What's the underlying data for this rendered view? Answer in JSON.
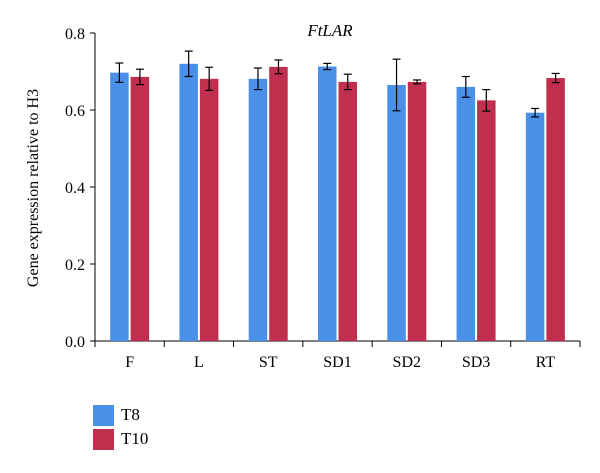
{
  "chart_data": {
    "type": "bar",
    "title": "FtLAR",
    "ylabel": "Gene expression relative to H3",
    "xlabel": "",
    "ylim": [
      0,
      0.8
    ],
    "yticks": [
      "0.0",
      "0.2",
      "0.4",
      "0.6",
      "0.8"
    ],
    "categories": [
      "F",
      "L",
      "ST",
      "SD1",
      "SD2",
      "SD3",
      "RT"
    ],
    "series": [
      {
        "name": "T8",
        "color": "#4a90e8",
        "values": [
          0.697,
          0.72,
          0.681,
          0.713,
          0.665,
          0.66,
          0.593
        ],
        "errors": [
          0.025,
          0.033,
          0.028,
          0.008,
          0.067,
          0.027,
          0.011
        ]
      },
      {
        "name": "T10",
        "color": "#c0304e",
        "values": [
          0.686,
          0.681,
          0.712,
          0.673,
          0.673,
          0.625,
          0.683
        ],
        "errors": [
          0.02,
          0.03,
          0.018,
          0.02,
          0.005,
          0.028,
          0.012
        ]
      }
    ],
    "legend_position": "bottom-left",
    "grid": false
  }
}
